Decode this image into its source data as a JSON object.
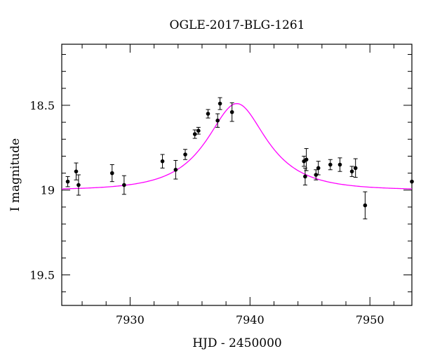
{
  "chart_data": {
    "type": "scatter",
    "title": "OGLE-2017-BLG-1261",
    "xlabel": "HJD - 2450000",
    "ylabel": "I magnitude",
    "xlim": [
      7924.3,
      7953.5
    ],
    "ylim": [
      19.68,
      18.14
    ],
    "y_inverted": true,
    "x_ticks": [
      7930,
      7940,
      7950
    ],
    "x_tick_labels": [
      "7930",
      "7940",
      "7950"
    ],
    "y_ticks": [
      18.5,
      19.0,
      19.5
    ],
    "y_tick_labels": [
      "18.5",
      "19",
      "19.5"
    ],
    "grid": false,
    "series": [
      {
        "kind": "points",
        "color": "#000000",
        "points": [
          {
            "x": 7924.8,
            "y": 18.95,
            "err": 0.03
          },
          {
            "x": 7925.5,
            "y": 18.89,
            "err": 0.05
          },
          {
            "x": 7925.7,
            "y": 18.97,
            "err": 0.06
          },
          {
            "x": 7928.5,
            "y": 18.9,
            "err": 0.05
          },
          {
            "x": 7929.5,
            "y": 18.97,
            "err": 0.055
          },
          {
            "x": 7932.7,
            "y": 18.83,
            "err": 0.04
          },
          {
            "x": 7933.8,
            "y": 18.88,
            "err": 0.055
          },
          {
            "x": 7934.6,
            "y": 18.79,
            "err": 0.03
          },
          {
            "x": 7935.4,
            "y": 18.67,
            "err": 0.025
          },
          {
            "x": 7935.7,
            "y": 18.65,
            "err": 0.02
          },
          {
            "x": 7936.5,
            "y": 18.55,
            "err": 0.025
          },
          {
            "x": 7937.3,
            "y": 18.59,
            "err": 0.04
          },
          {
            "x": 7937.5,
            "y": 18.49,
            "err": 0.035
          },
          {
            "x": 7938.5,
            "y": 18.54,
            "err": 0.055
          },
          {
            "x": 7944.5,
            "y": 18.83,
            "err": 0.03
          },
          {
            "x": 7944.7,
            "y": 18.82,
            "err": 0.065
          },
          {
            "x": 7944.6,
            "y": 18.92,
            "err": 0.05
          },
          {
            "x": 7945.5,
            "y": 18.91,
            "err": 0.03
          },
          {
            "x": 7945.7,
            "y": 18.87,
            "err": 0.04
          },
          {
            "x": 7946.7,
            "y": 18.85,
            "err": 0.03
          },
          {
            "x": 7947.5,
            "y": 18.85,
            "err": 0.04
          },
          {
            "x": 7948.5,
            "y": 18.89,
            "err": 0.03
          },
          {
            "x": 7948.8,
            "y": 18.87,
            "err": 0.055
          },
          {
            "x": 7949.6,
            "y": 19.09,
            "err": 0.08
          },
          {
            "x": 7953.5,
            "y": 18.95,
            "err": 0.0
          }
        ]
      },
      {
        "kind": "model",
        "color": "#ff00ff",
        "t0": 7938.9,
        "tE": 4.45,
        "u0": 0.62,
        "base_mag": 19.0,
        "peak_mag": 18.49
      }
    ]
  }
}
